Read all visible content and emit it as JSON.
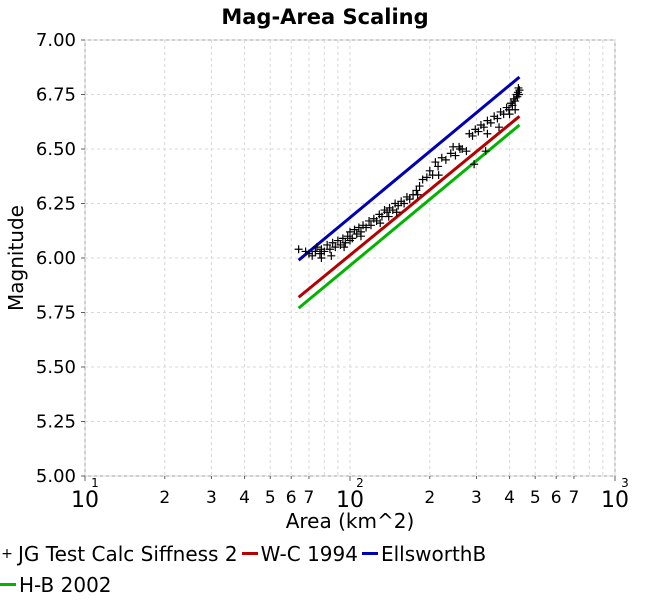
{
  "chart_data": {
    "type": "scatter",
    "title": "Mag-Area Scaling",
    "xlabel": "Area (km^2)",
    "ylabel": "Magnitude",
    "xscale": "log",
    "xlim": [
      10,
      1000
    ],
    "ylim": [
      5.0,
      7.0
    ],
    "grid": true,
    "legend_position": "bottom",
    "x_ticks_major": [
      {
        "value": 10,
        "base": "10",
        "exp": "1"
      },
      {
        "value": 100,
        "base": "10",
        "exp": "2"
      },
      {
        "value": 1000,
        "base": "10",
        "exp": "3"
      }
    ],
    "x_ticks_minor": [
      {
        "value": 20,
        "label": "2"
      },
      {
        "value": 30,
        "label": "3"
      },
      {
        "value": 40,
        "label": "4"
      },
      {
        "value": 50,
        "label": "5"
      },
      {
        "value": 60,
        "label": "6"
      },
      {
        "value": 70,
        "label": "7"
      },
      {
        "value": 200,
        "label": "2"
      },
      {
        "value": 300,
        "label": "3"
      },
      {
        "value": 400,
        "label": "4"
      },
      {
        "value": 500,
        "label": "5"
      },
      {
        "value": 600,
        "label": "6"
      },
      {
        "value": 700,
        "label": "7"
      }
    ],
    "x_grid_values": [
      10,
      20,
      30,
      40,
      50,
      60,
      70,
      80,
      90,
      100,
      200,
      300,
      400,
      500,
      600,
      700,
      800,
      900,
      1000
    ],
    "y_ticks": [
      "5.00",
      "5.25",
      "5.50",
      "5.75",
      "6.00",
      "6.25",
      "6.50",
      "6.75",
      "7.00"
    ],
    "series": [
      {
        "name": "JG Test Calc Siffness 2",
        "type": "scatter",
        "marker": "plus",
        "color": "#000000",
        "points": [
          [
            64,
            6.04
          ],
          [
            68,
            6.03
          ],
          [
            70,
            6.02
          ],
          [
            72,
            6.01
          ],
          [
            74,
            6.03
          ],
          [
            75,
            6.05
          ],
          [
            77,
            6.02
          ],
          [
            78,
            6.04
          ],
          [
            80,
            6.03
          ],
          [
            82,
            6.06
          ],
          [
            84,
            6.04
          ],
          [
            86,
            6.07
          ],
          [
            88,
            6.05
          ],
          [
            90,
            6.08
          ],
          [
            92,
            6.06
          ],
          [
            94,
            6.09
          ],
          [
            96,
            6.07
          ],
          [
            98,
            6.1
          ],
          [
            100,
            6.12
          ],
          [
            102,
            6.09
          ],
          [
            104,
            6.13
          ],
          [
            106,
            6.11
          ],
          [
            108,
            6.14
          ],
          [
            110,
            6.12
          ],
          [
            112,
            6.15
          ],
          [
            115,
            6.14
          ],
          [
            118,
            6.17
          ],
          [
            120,
            6.15
          ],
          [
            123,
            6.18
          ],
          [
            126,
            6.17
          ],
          [
            129,
            6.2
          ],
          [
            132,
            6.19
          ],
          [
            135,
            6.22
          ],
          [
            138,
            6.21
          ],
          [
            141,
            6.23
          ],
          [
            145,
            6.22
          ],
          [
            148,
            6.25
          ],
          [
            152,
            6.24
          ],
          [
            156,
            6.26
          ],
          [
            160,
            6.25
          ],
          [
            164,
            6.28
          ],
          [
            168,
            6.27
          ],
          [
            173,
            6.29
          ],
          [
            178,
            6.31
          ],
          [
            183,
            6.33
          ],
          [
            188,
            6.36
          ],
          [
            195,
            6.37
          ],
          [
            200,
            6.4
          ],
          [
            205,
            6.38
          ],
          [
            210,
            6.44
          ],
          [
            215,
            6.42
          ],
          [
            222,
            6.46
          ],
          [
            230,
            6.45
          ],
          [
            240,
            6.48
          ],
          [
            250,
            6.47
          ],
          [
            258,
            6.51
          ],
          [
            265,
            6.5
          ],
          [
            275,
            6.49
          ],
          [
            282,
            6.57
          ],
          [
            290,
            6.56
          ],
          [
            297,
            6.59
          ],
          [
            305,
            6.58
          ],
          [
            312,
            6.61
          ],
          [
            320,
            6.6
          ],
          [
            330,
            6.63
          ],
          [
            340,
            6.62
          ],
          [
            350,
            6.65
          ],
          [
            360,
            6.64
          ],
          [
            370,
            6.67
          ],
          [
            380,
            6.66
          ],
          [
            390,
            6.69
          ],
          [
            398,
            6.68
          ],
          [
            405,
            6.71
          ],
          [
            410,
            6.7
          ],
          [
            415,
            6.73
          ],
          [
            420,
            6.72
          ],
          [
            425,
            6.75
          ],
          [
            428,
            6.74
          ],
          [
            430,
            6.76
          ],
          [
            432,
            6.78
          ],
          [
            434,
            6.75
          ],
          [
            436,
            6.77
          ],
          [
            420,
            6.68
          ],
          [
            400,
            6.66
          ],
          [
            365,
            6.6
          ],
          [
            330,
            6.57
          ],
          [
            294,
            6.43
          ],
          [
            325,
            6.49
          ],
          [
            216,
            6.38
          ],
          [
            260,
            6.5
          ],
          [
            150,
            6.21
          ],
          [
            130,
            6.16
          ],
          [
            110,
            6.1
          ],
          [
            95,
            6.05
          ],
          [
            85,
            6.01
          ],
          [
            78,
            6.0
          ],
          [
            100,
            6.08
          ],
          [
            140,
            6.19
          ],
          [
            180,
            6.29
          ],
          [
            245,
            6.51
          ]
        ]
      },
      {
        "name": "W-C 1994",
        "type": "line",
        "color": "#b40000",
        "points": [
          [
            64,
            5.82
          ],
          [
            436,
            6.65
          ]
        ]
      },
      {
        "name": "EllsworthB",
        "type": "line",
        "color": "#0000b4",
        "points": [
          [
            64,
            5.99
          ],
          [
            436,
            6.83
          ]
        ]
      },
      {
        "name": "H-B 2002",
        "type": "line",
        "color": "#00b400",
        "points": [
          [
            64,
            5.77
          ],
          [
            436,
            6.61
          ]
        ]
      }
    ]
  }
}
